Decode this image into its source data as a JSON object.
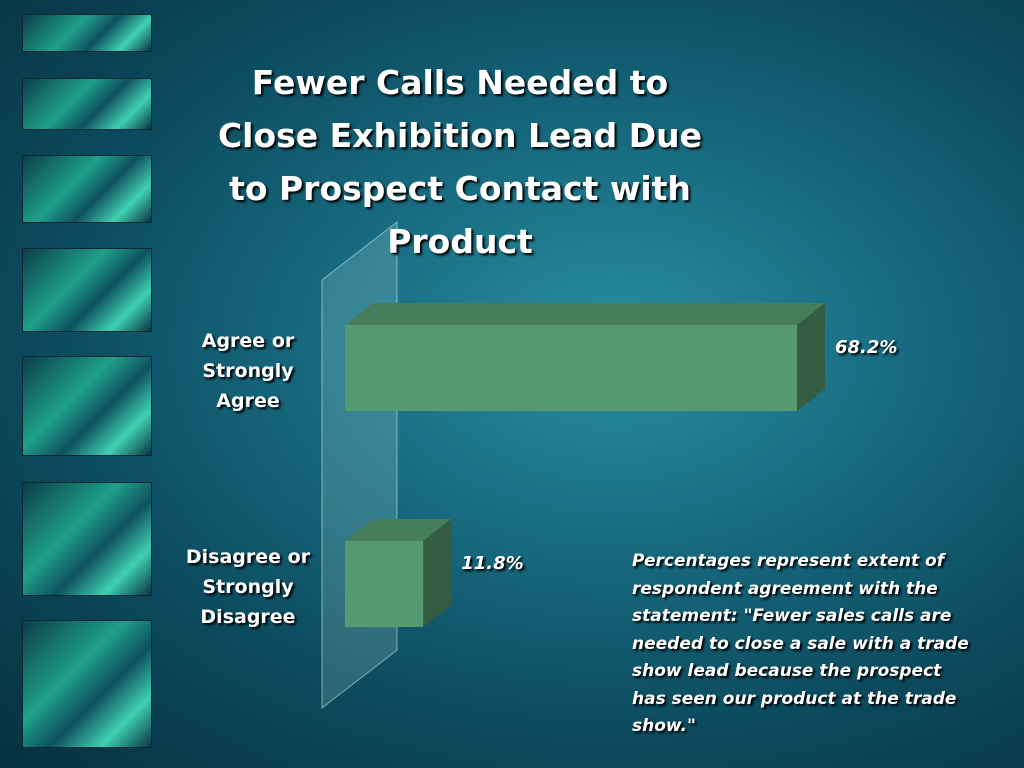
{
  "chart_data": {
    "type": "bar",
    "orientation": "horizontal",
    "title": "Fewer Calls Needed to Close Exhibition Lead Due to  Prospect Contact with Product",
    "categories": [
      "Agree or Strongly Agree",
      "Disagree or Strongly Disagree"
    ],
    "values": [
      68.2,
      11.8
    ],
    "value_labels": [
      "68.2%",
      "11.8%"
    ],
    "color": "#559a70",
    "annotation": "Percentages represent extent of respondent agreement with the statement:  \"Fewer  sales calls are needed to close a sale with a trade show lead because the prospect has seen our product at the trade show.\""
  }
}
